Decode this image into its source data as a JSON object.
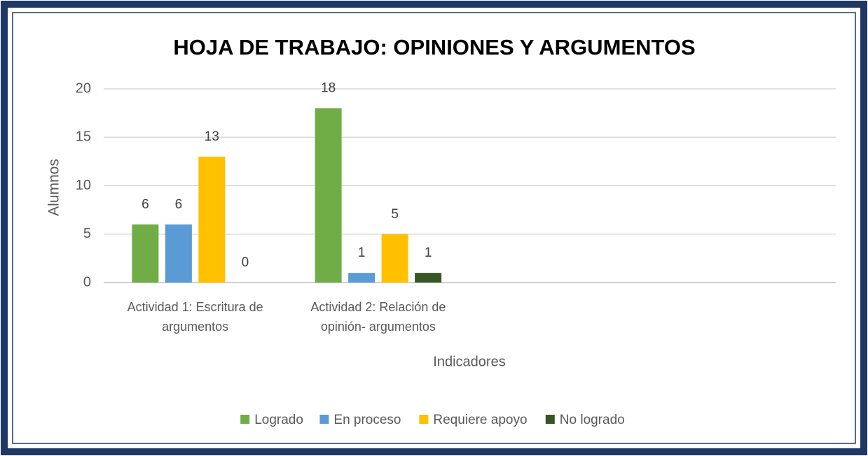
{
  "chart_data": {
    "type": "bar",
    "title": "HOJA DE TRABAJO:  OPINIONES Y ARGUMENTOS",
    "x_label": "Indicadores",
    "y_label": "Alumnos",
    "categories": [
      "Actividad 1: Escritura de argumentos",
      "Actividad 2: Relación de opinión- argumentos",
      null,
      null
    ],
    "series": [
      {
        "name": "Logrado",
        "color": "#70ad47",
        "values": [
          6,
          18,
          null,
          null
        ]
      },
      {
        "name": "En proceso",
        "color": "#5b9bd5",
        "values": [
          6,
          1,
          null,
          null
        ]
      },
      {
        "name": "Requiere apoyo",
        "color": "#ffc000",
        "values": [
          13,
          5,
          null,
          null
        ]
      },
      {
        "name": "No logrado",
        "color": "#375623",
        "values": [
          0,
          1,
          null,
          null
        ]
      }
    ],
    "ylim": [
      0,
      20
    ],
    "yticks": [
      0,
      5,
      10,
      15,
      20
    ],
    "grid": true,
    "legend": "bottom"
  }
}
